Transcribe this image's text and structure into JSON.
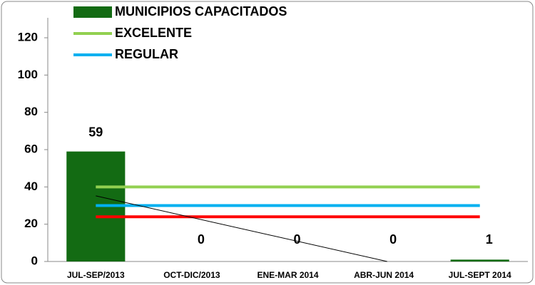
{
  "chart_data": {
    "type": "bar",
    "categories": [
      "JUL-SEP/2013",
      "OCT-DIC/2013",
      "ENE-MAR 2014",
      "ABR-JUN 2014",
      "JUL-SEPT 2014"
    ],
    "series": [
      {
        "name": "MUNICIPIOS CAPACITADOS",
        "type": "bar",
        "color": "#136b13",
        "values": [
          59,
          0,
          0,
          0,
          1
        ]
      },
      {
        "name": "EXCELENTE",
        "type": "line",
        "color": "#92d050",
        "values": [
          40,
          40,
          40,
          40,
          40
        ]
      },
      {
        "name": "REGULAR",
        "type": "line",
        "color": "#00b0f0",
        "values": [
          30,
          30,
          30,
          30,
          30
        ]
      },
      {
        "type": "line",
        "color": "#ff0000",
        "values": [
          24,
          24,
          24,
          24,
          24
        ]
      }
    ],
    "trendline": {
      "series": 0,
      "color": "#000000"
    },
    "ylim": [
      0,
      120
    ],
    "yticks": [
      0,
      20,
      40,
      60,
      80,
      100,
      120
    ]
  }
}
